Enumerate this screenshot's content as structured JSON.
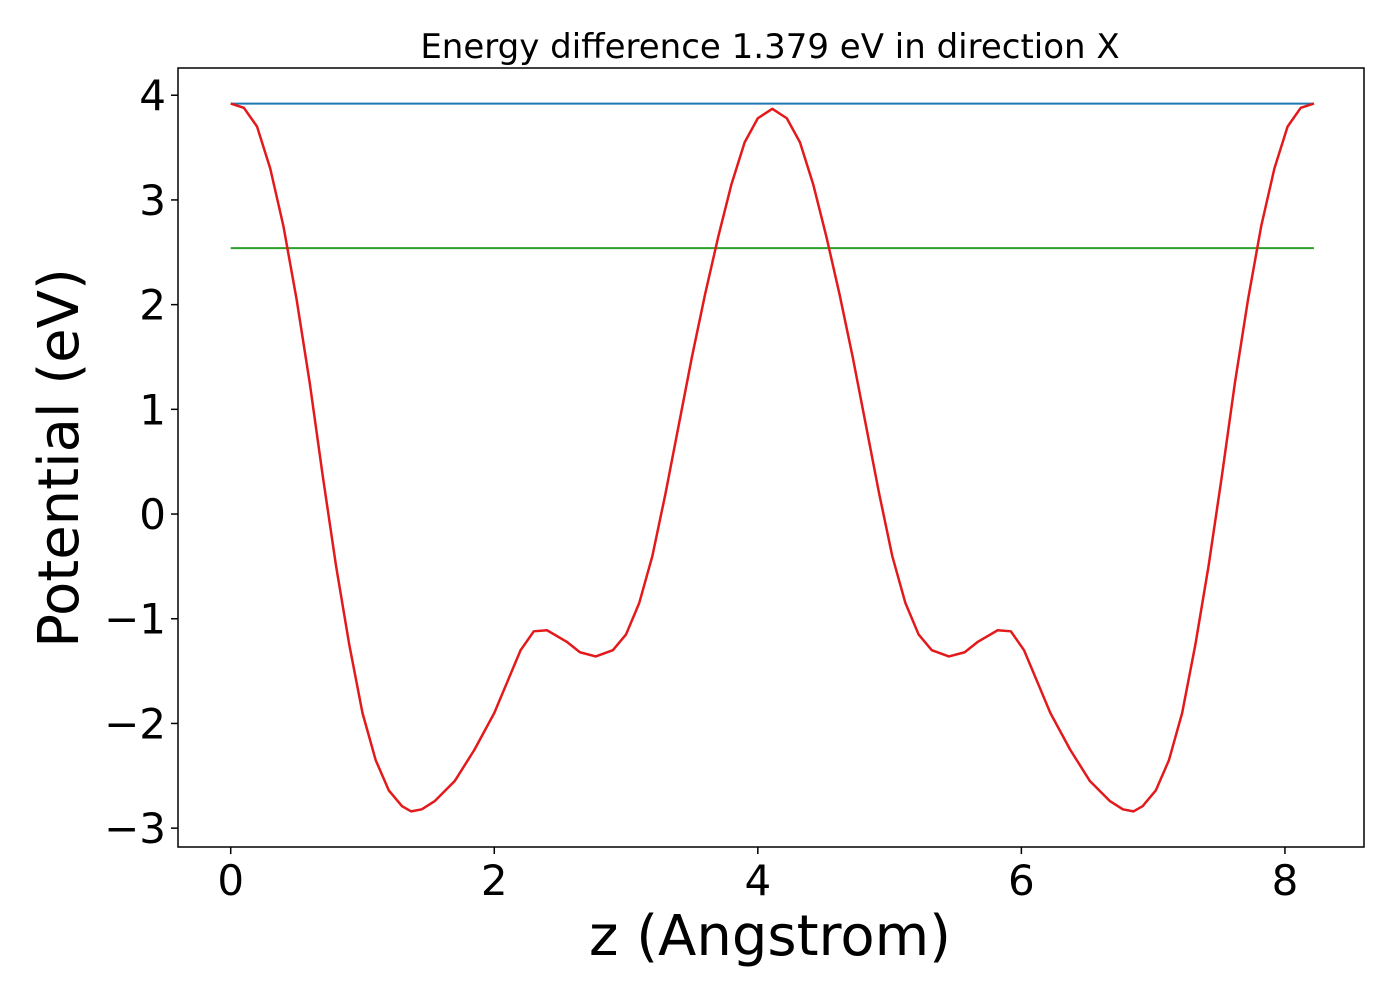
{
  "chart_data": {
    "type": "line",
    "title": "Energy difference 1.379 eV in direction X",
    "xlabel": "z (Angstrom)",
    "ylabel": "Potential (eV)",
    "xlim": [
      -0.4,
      8.6
    ],
    "ylim": [
      -3.18,
      4.26
    ],
    "xticks": [
      0,
      2,
      4,
      6,
      8
    ],
    "yticks": [
      -3,
      -2,
      -1,
      0,
      1,
      2,
      3,
      4
    ],
    "xtick_labels": [
      "0",
      "2",
      "4",
      "6",
      "8"
    ],
    "ytick_labels": [
      "−3",
      "−2",
      "−1",
      "0",
      "1",
      "2",
      "3",
      "4"
    ],
    "grid": false,
    "series": [
      {
        "color": "#1f77b4",
        "values": [
          [
            0.0,
            3.92
          ],
          [
            8.22,
            3.92
          ]
        ]
      },
      {
        "color": "#2ca02c",
        "values": [
          [
            0.0,
            2.54
          ],
          [
            8.22,
            2.54
          ]
        ]
      },
      {
        "color": "#e31a1c",
        "values": [
          [
            0.0,
            3.92
          ],
          [
            0.1,
            3.88
          ],
          [
            0.2,
            3.7
          ],
          [
            0.3,
            3.3
          ],
          [
            0.4,
            2.75
          ],
          [
            0.5,
            2.05
          ],
          [
            0.6,
            1.25
          ],
          [
            0.7,
            0.35
          ],
          [
            0.8,
            -0.5
          ],
          [
            0.9,
            -1.25
          ],
          [
            1.0,
            -1.9
          ],
          [
            1.1,
            -2.35
          ],
          [
            1.2,
            -2.64
          ],
          [
            1.3,
            -2.79
          ],
          [
            1.37,
            -2.84
          ],
          [
            1.45,
            -2.82
          ],
          [
            1.55,
            -2.74
          ],
          [
            1.7,
            -2.55
          ],
          [
            1.85,
            -2.25
          ],
          [
            2.0,
            -1.9
          ],
          [
            2.1,
            -1.6
          ],
          [
            2.2,
            -1.3
          ],
          [
            2.3,
            -1.12
          ],
          [
            2.4,
            -1.11
          ],
          [
            2.55,
            -1.22
          ],
          [
            2.65,
            -1.32
          ],
          [
            2.77,
            -1.36
          ],
          [
            2.9,
            -1.3
          ],
          [
            3.0,
            -1.15
          ],
          [
            3.1,
            -0.85
          ],
          [
            3.2,
            -0.4
          ],
          [
            3.3,
            0.2
          ],
          [
            3.4,
            0.85
          ],
          [
            3.5,
            1.5
          ],
          [
            3.6,
            2.1
          ],
          [
            3.7,
            2.65
          ],
          [
            3.8,
            3.15
          ],
          [
            3.9,
            3.55
          ],
          [
            4.0,
            3.78
          ],
          [
            4.11,
            3.87
          ],
          [
            4.22,
            3.78
          ],
          [
            4.32,
            3.55
          ],
          [
            4.42,
            3.15
          ],
          [
            4.52,
            2.65
          ],
          [
            4.62,
            2.1
          ],
          [
            4.72,
            1.5
          ],
          [
            4.82,
            0.85
          ],
          [
            4.92,
            0.2
          ],
          [
            5.02,
            -0.4
          ],
          [
            5.12,
            -0.85
          ],
          [
            5.22,
            -1.15
          ],
          [
            5.32,
            -1.3
          ],
          [
            5.45,
            -1.36
          ],
          [
            5.57,
            -1.32
          ],
          [
            5.67,
            -1.22
          ],
          [
            5.82,
            -1.11
          ],
          [
            5.92,
            -1.12
          ],
          [
            6.02,
            -1.3
          ],
          [
            6.12,
            -1.6
          ],
          [
            6.22,
            -1.9
          ],
          [
            6.37,
            -2.25
          ],
          [
            6.52,
            -2.55
          ],
          [
            6.67,
            -2.74
          ],
          [
            6.77,
            -2.82
          ],
          [
            6.85,
            -2.84
          ],
          [
            6.92,
            -2.79
          ],
          [
            7.02,
            -2.64
          ],
          [
            7.12,
            -2.35
          ],
          [
            7.22,
            -1.9
          ],
          [
            7.32,
            -1.25
          ],
          [
            7.42,
            -0.5
          ],
          [
            7.52,
            0.35
          ],
          [
            7.62,
            1.25
          ],
          [
            7.72,
            2.05
          ],
          [
            7.82,
            2.75
          ],
          [
            7.92,
            3.3
          ],
          [
            8.02,
            3.7
          ],
          [
            8.12,
            3.88
          ],
          [
            8.22,
            3.92
          ]
        ]
      }
    ]
  }
}
